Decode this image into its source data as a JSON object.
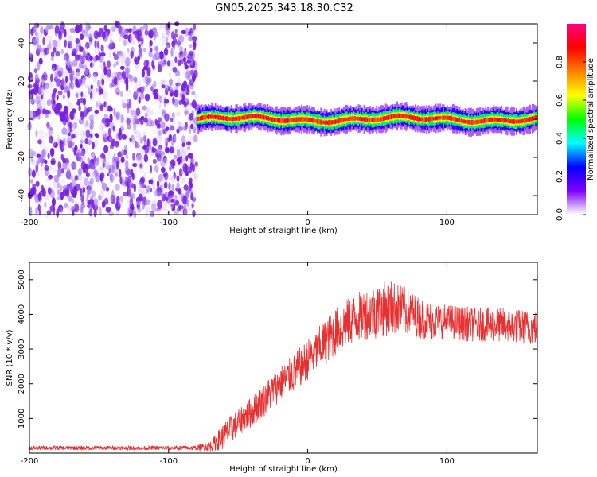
{
  "title": "GN05.2025.343.18.30.C32",
  "chart_data": [
    {
      "type": "heatmap",
      "xlabel": "Height of straight line (km)",
      "ylabel": "Frequency (Hz)",
      "xlim": [
        -200,
        165
      ],
      "ylim": [
        -50,
        50
      ],
      "xticks": [
        -200,
        -100,
        0,
        100
      ],
      "xtick_labels": [
        "-200",
        "-100",
        "0",
        "100"
      ],
      "yticks": [
        -40,
        -20,
        0,
        20,
        40
      ],
      "ytick_labels": [
        "-40",
        "-20",
        "0",
        "20",
        "40"
      ],
      "noise_region_x": [
        -200,
        -80
      ],
      "signal_region_x": [
        -80,
        165
      ],
      "signal_center_frequency": 0,
      "signal_half_width": 4,
      "colorbar": {
        "label": "Normalized spectral amplitude",
        "range": [
          0,
          1
        ],
        "ticks": [
          0.0,
          0.2,
          0.4,
          0.6,
          0.8
        ],
        "tick_labels": [
          "0.0",
          "0.2",
          "0.4",
          "0.6",
          "0.8"
        ],
        "colormap": [
          "#ffffff",
          "#7f00ff",
          "#0000ff",
          "#00ffff",
          "#00ff00",
          "#ffff00",
          "#ff8000",
          "#ff0000",
          "#ff0080"
        ]
      }
    },
    {
      "type": "line",
      "xlabel": "Height of straight line (km)",
      "ylabel": "SNR (10 * v/v)",
      "xlim": [
        -200,
        165
      ],
      "ylim": [
        0,
        5500
      ],
      "xticks": [
        -200,
        -100,
        0,
        100
      ],
      "xtick_labels": [
        "-200",
        "-100",
        "0",
        "100"
      ],
      "yticks": [
        1000,
        2000,
        3000,
        4000,
        5000
      ],
      "ytick_labels": [
        "1000",
        "2000",
        "3000",
        "4000",
        "5000"
      ],
      "color": "#e83030",
      "x": [
        -200,
        -150,
        -100,
        -80,
        -70,
        -60,
        -50,
        -40,
        -30,
        -20,
        -10,
        0,
        10,
        20,
        30,
        40,
        50,
        60,
        70,
        80,
        90,
        100,
        120,
        140,
        165
      ],
      "y": [
        150,
        150,
        150,
        150,
        200,
        500,
        900,
        1200,
        1600,
        2000,
        2300,
        2700,
        3100,
        3500,
        3800,
        4000,
        4100,
        4200,
        4100,
        3900,
        3800,
        3800,
        3700,
        3700,
        3600
      ],
      "noise_amplitude": [
        60,
        60,
        60,
        70,
        150,
        400,
        400,
        450,
        500,
        500,
        550,
        600,
        650,
        700,
        700,
        750,
        800,
        800,
        700,
        600,
        550,
        500,
        500,
        500,
        500
      ]
    }
  ]
}
